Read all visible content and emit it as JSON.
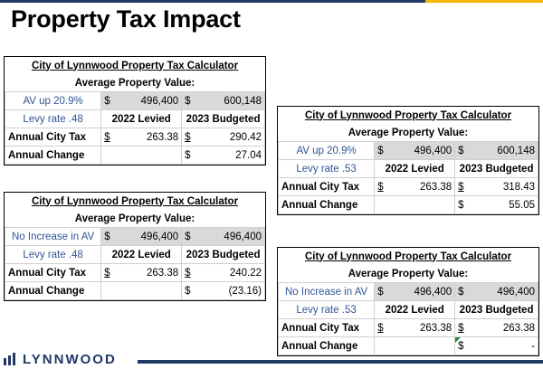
{
  "slide": {
    "title": "Property Tax Impact",
    "logo_text": "LYNNWOOD",
    "colors": {
      "accent_blue": "#2f5597",
      "navy": "#1f3864",
      "gold": "#f4b400",
      "shade": "#d9d9d9"
    }
  },
  "calculators": [
    {
      "header": "City of Lynnwood Property Tax Calculator",
      "avg_label": "Average Property Value:",
      "av_label": "AV up 20.9%",
      "av_2022_sym": "$",
      "av_2022": "496,400",
      "av_2023_sym": "$",
      "av_2023": "600,148",
      "levy_label": "Levy rate .48",
      "col_2022": "2022 Levied",
      "col_2023": "2023 Budgeted",
      "tax_label": "Annual City Tax",
      "tax_2022_sym": "$",
      "tax_2022": "263.38",
      "tax_2023_sym": "$",
      "tax_2023": "290.42",
      "change_label": "Annual Change",
      "change_sym": "$",
      "change": "27.04"
    },
    {
      "header": "City of Lynnwood Property Tax Calculator",
      "avg_label": "Average Property Value:",
      "av_label": "AV up 20.9%",
      "av_2022_sym": "$",
      "av_2022": "496,400",
      "av_2023_sym": "$",
      "av_2023": "600,148",
      "levy_label": "Levy rate .53",
      "col_2022": "2022 Levied",
      "col_2023": "2023 Budgeted",
      "tax_label": "Annual City Tax",
      "tax_2022_sym": "$",
      "tax_2022": "263.38",
      "tax_2023_sym": "$",
      "tax_2023": "318.43",
      "change_label": "Annual Change",
      "change_sym": "$",
      "change": "55.05"
    },
    {
      "header": "City of Lynnwood Property Tax Calculator",
      "avg_label": "Average Property Value:",
      "av_label": "No Increase in AV",
      "av_2022_sym": "$",
      "av_2022": "496,400",
      "av_2023_sym": "$",
      "av_2023": "496,400",
      "levy_label": "Levy rate .48",
      "col_2022": "2022 Levied",
      "col_2023": "2023 Budgeted",
      "tax_label": "Annual City Tax",
      "tax_2022_sym": "$",
      "tax_2022": "263.38",
      "tax_2023_sym": "$",
      "tax_2023": "240.22",
      "change_label": "Annual Change",
      "change_sym": "$",
      "change": "(23.16)"
    },
    {
      "header": "City of Lynnwood Property Tax Calculator",
      "avg_label": "Average Property Value:",
      "av_label": "No Increase in AV",
      "av_2022_sym": "$",
      "av_2022": "496,400",
      "av_2023_sym": "$",
      "av_2023": "496,400",
      "levy_label": "Levy rate .53",
      "col_2022": "2022 Levied",
      "col_2023": "2023 Budgeted",
      "tax_label": "Annual City Tax",
      "tax_2022_sym": "$",
      "tax_2022": "263.38",
      "tax_2023_sym": "$",
      "tax_2023": "263.38",
      "change_label": "Annual Change",
      "change_sym": "$",
      "change": "-"
    }
  ]
}
